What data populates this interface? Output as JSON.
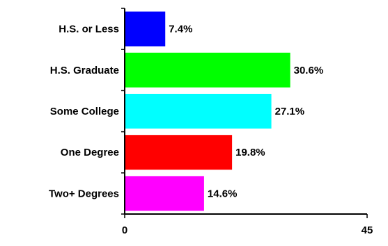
{
  "chart_data": {
    "type": "bar",
    "orientation": "horizontal",
    "categories": [
      "H.S. or Less",
      "H.S. Graduate",
      "Some College",
      "One Degree",
      "Two+ Degrees"
    ],
    "values": [
      7.4,
      30.6,
      27.1,
      19.8,
      14.6
    ],
    "value_labels": [
      "7.4%",
      "30.6%",
      "27.1%",
      "19.8%",
      "14.6%"
    ],
    "colors": [
      "#0000ff",
      "#00ff00",
      "#00ffff",
      "#ff0000",
      "#ff00ff"
    ],
    "xlim": [
      0,
      45
    ],
    "x_tick_labels": [
      "0",
      "45"
    ],
    "title": "",
    "xlabel": "",
    "ylabel": "",
    "grid": false,
    "legend": false
  }
}
